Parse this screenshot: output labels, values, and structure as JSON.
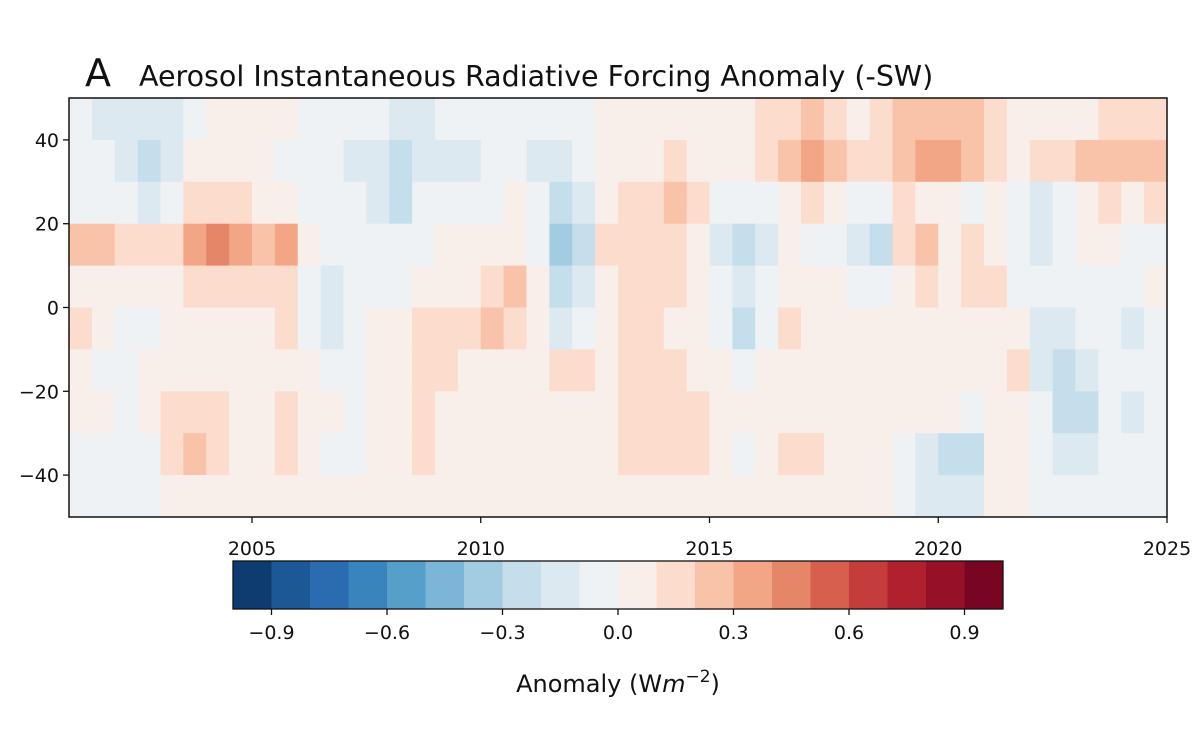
{
  "chart_data": {
    "type": "heatmap",
    "panel_label": "A",
    "title": "Aerosol Instantaneous Radiative Forcing Anomaly (-SW)",
    "xlabel": "",
    "ylabel": "",
    "xlim": [
      2001,
      2025
    ],
    "ylim": [
      -50,
      50
    ],
    "x_ticks": [
      "2005",
      "2010",
      "2015",
      "2020",
      "2025"
    ],
    "y_ticks": [
      "40",
      "20",
      "0",
      "−20",
      "−40"
    ],
    "x_tick_values": [
      2005,
      2010,
      2015,
      2020,
      2025
    ],
    "y_tick_values": [
      40,
      20,
      0,
      -20,
      -40
    ],
    "x_bin_start_years": [
      2001.0,
      2001.5,
      2002.0,
      2002.5,
      2003.0,
      2003.5,
      2004.0,
      2004.5,
      2005.0,
      2005.5,
      2006.0,
      2006.5,
      2007.0,
      2007.5,
      2008.0,
      2008.5,
      2009.0,
      2009.5,
      2010.0,
      2010.5,
      2011.0,
      2011.5,
      2012.0,
      2012.5,
      2013.0,
      2013.5,
      2014.0,
      2014.5,
      2015.0,
      2015.5,
      2016.0,
      2016.5,
      2017.0,
      2017.5,
      2018.0,
      2018.5,
      2019.0,
      2019.5,
      2020.0,
      2020.5,
      2021.0,
      2021.5,
      2022.0,
      2022.5,
      2023.0,
      2023.5,
      2024.0,
      2024.5
    ],
    "x_bin_width_years": 0.5,
    "lat_centers": [
      45,
      35,
      25,
      15,
      5,
      -5,
      -15,
      -25,
      -35,
      -45
    ],
    "lat_bin_width": 10,
    "z": [
      [
        -0.1,
        -0.15,
        -0.2,
        -0.2,
        -0.2,
        -0.05,
        0.05,
        0,
        0,
        0,
        -0.05,
        -0.1,
        -0.05,
        -0.1,
        -0.15,
        -0.15,
        -0.1,
        -0.05,
        -0.05,
        -0.05,
        -0.05,
        -0.1,
        -0.05,
        0.05,
        0.05,
        0.05,
        0.05,
        0.05,
        0,
        0.05,
        0.15,
        0.15,
        0.25,
        0.15,
        0.05,
        0.1,
        0.2,
        0.2,
        0.2,
        0.2,
        0.1,
        0.05,
        0.05,
        0.05,
        0.05,
        0.1,
        0.1,
        0.15
      ],
      [
        -0.1,
        -0.1,
        -0.2,
        -0.25,
        -0.15,
        0.05,
        0.05,
        0,
        0,
        -0.05,
        -0.1,
        -0.1,
        -0.15,
        -0.2,
        -0.25,
        -0.2,
        -0.15,
        -0.15,
        -0.1,
        -0.05,
        -0.15,
        -0.2,
        -0.1,
        0,
        0.05,
        0.05,
        0.1,
        0.05,
        0,
        0.05,
        0.1,
        0.2,
        0.3,
        0.2,
        0.1,
        0.15,
        0.25,
        0.3,
        0.3,
        0.25,
        0.15,
        0.05,
        0.1,
        0.15,
        0.2,
        0.2,
        0.2,
        0.25
      ],
      [
        -0.05,
        -0.05,
        -0.1,
        -0.15,
        -0.05,
        0.1,
        0.15,
        0.1,
        0.05,
        0.05,
        -0.05,
        -0.05,
        -0.1,
        -0.15,
        -0.25,
        -0.1,
        -0.05,
        -0.1,
        -0.05,
        0,
        -0.1,
        -0.25,
        -0.15,
        0.05,
        0.1,
        0.1,
        0.2,
        0.1,
        -0.05,
        -0.1,
        -0.05,
        0.05,
        0.1,
        0.05,
        -0.05,
        -0.05,
        0.1,
        0.05,
        0,
        -0.05,
        0,
        -0.1,
        -0.2,
        -0.1,
        0.05,
        0.1,
        0.05,
        0.1
      ],
      [
        0.2,
        0.2,
        0.15,
        0.15,
        0.1,
        0.3,
        0.4,
        0.35,
        0.2,
        0.3,
        0.05,
        -0.05,
        -0.05,
        -0.05,
        -0.1,
        -0.05,
        0.05,
        0,
        0.05,
        0.05,
        -0.05,
        -0.4,
        -0.25,
        0.1,
        0.15,
        0.1,
        0.1,
        0.05,
        -0.2,
        -0.3,
        -0.15,
        0,
        -0.05,
        -0.1,
        -0.2,
        -0.3,
        0.1,
        0.25,
        0.05,
        0.1,
        0.05,
        -0.05,
        -0.15,
        -0.05,
        0,
        0,
        -0.1,
        -0.1
      ],
      [
        0.05,
        0.05,
        0.05,
        0.05,
        0.05,
        0.1,
        0.15,
        0.15,
        0.1,
        0.1,
        -0.1,
        -0.2,
        -0.1,
        -0.05,
        -0.05,
        0,
        0.05,
        0.05,
        0.15,
        0.2,
        0,
        -0.3,
        -0.15,
        0.05,
        0.1,
        0.1,
        0.1,
        0.05,
        -0.1,
        -0.2,
        -0.1,
        0,
        0,
        0,
        -0.05,
        -0.1,
        0.05,
        0.1,
        0.05,
        0.1,
        0.15,
        -0.05,
        -0.05,
        -0.1,
        -0.1,
        -0.05,
        -0.05,
        0
      ],
      [
        0.15,
        0.05,
        -0.05,
        -0.05,
        0.05,
        0.05,
        0.05,
        0.05,
        0.05,
        0.1,
        -0.05,
        -0.15,
        -0.1,
        0,
        0,
        0.1,
        0.15,
        0.15,
        0.2,
        0.1,
        0,
        -0.15,
        -0.05,
        0.05,
        0.1,
        0.1,
        0.05,
        0.05,
        -0.05,
        -0.3,
        -0.1,
        0.1,
        0.05,
        0.05,
        0,
        0,
        0.05,
        0.05,
        0.05,
        0.05,
        0.05,
        0,
        -0.15,
        -0.2,
        -0.1,
        -0.1,
        -0.15,
        -0.1
      ],
      [
        0.05,
        -0.05,
        -0.1,
        0,
        0.05,
        0.05,
        0.05,
        0.05,
        0.05,
        0.05,
        0,
        -0.05,
        -0.05,
        0,
        0,
        0.15,
        0.1,
        0.05,
        0.05,
        0.05,
        0.05,
        0.1,
        0.1,
        0.05,
        0.1,
        0.1,
        0.1,
        0.05,
        0,
        -0.05,
        0,
        0.05,
        0.05,
        0,
        0,
        0,
        0.05,
        0.05,
        0.05,
        0,
        0.05,
        0.1,
        -0.15,
        -0.3,
        -0.15,
        -0.1,
        -0.1,
        -0.1
      ],
      [
        0,
        0,
        -0.05,
        0.05,
        0.15,
        0.15,
        0.15,
        0.05,
        0.05,
        0.1,
        0,
        0,
        -0.05,
        0,
        0.05,
        0.1,
        0.05,
        0.05,
        0.05,
        0.05,
        0.05,
        0.05,
        0.05,
        0.05,
        0.1,
        0.15,
        0.15,
        0.1,
        0,
        0,
        0.05,
        0,
        0,
        0,
        0,
        0,
        0.05,
        0.05,
        0,
        -0.05,
        0.05,
        0,
        -0.1,
        -0.3,
        -0.25,
        -0.1,
        -0.15,
        -0.1
      ],
      [
        -0.05,
        -0.05,
        -0.05,
        -0.05,
        0.15,
        0.2,
        0.15,
        0.05,
        0.05,
        0.1,
        0,
        -0.05,
        -0.05,
        0,
        0.05,
        0.1,
        0.05,
        0.05,
        0.05,
        0.05,
        0.05,
        0.05,
        0.05,
        0.05,
        0.1,
        0.15,
        0.15,
        0.1,
        0,
        -0.05,
        0.05,
        0.1,
        0.1,
        0.05,
        0,
        0,
        -0.1,
        -0.2,
        -0.25,
        -0.3,
        0,
        0,
        -0.05,
        -0.2,
        -0.15,
        -0.1,
        -0.1,
        -0.1
      ],
      [
        -0.05,
        -0.05,
        -0.05,
        -0.05,
        0.05,
        0.05,
        0.05,
        0.05,
        0.05,
        0.05,
        0,
        0,
        0,
        0,
        0,
        0.05,
        0.05,
        0.05,
        0.05,
        0.05,
        0.05,
        0.05,
        0.05,
        0.05,
        0.05,
        0.05,
        0.05,
        0.05,
        0,
        0,
        0,
        0.05,
        0.05,
        0.05,
        0.05,
        0.05,
        -0.05,
        -0.15,
        -0.2,
        -0.2,
        0,
        0,
        -0.05,
        -0.05,
        -0.05,
        -0.05,
        -0.05,
        -0.05
      ]
    ],
    "colorbar": {
      "range": [
        -1.0,
        1.0
      ],
      "step": 0.1,
      "tick_values": [
        -0.9,
        -0.6,
        -0.3,
        0.0,
        0.3,
        0.6,
        0.9
      ],
      "tick_labels": [
        "−0.9",
        "−0.6",
        "−0.3",
        "0.0",
        "0.3",
        "0.6",
        "0.9"
      ],
      "label_main": "Anomaly (W",
      "label_unit_italic": "m",
      "label_exponent": "−2",
      "label_close": ")",
      "colors": [
        "#0e3c70",
        "#1c5796",
        "#2b6cb0",
        "#3a84bd",
        "#559fca",
        "#7bb5d7",
        "#a3cce3",
        "#c4deec",
        "#dde9f1",
        "#eef2f5",
        "#f8efeb",
        "#fbdccd",
        "#f8c3a8",
        "#f2a686",
        "#e58669",
        "#d6604d",
        "#c43c3c",
        "#b1202d",
        "#961128",
        "#780623"
      ]
    }
  }
}
